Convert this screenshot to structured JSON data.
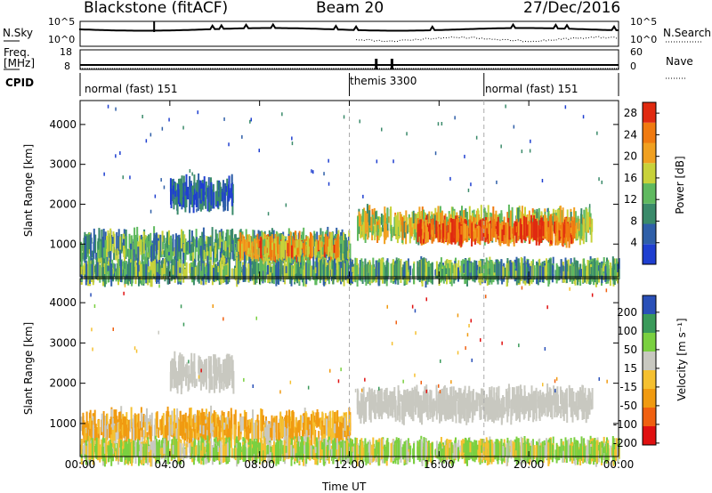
{
  "header": {
    "radar": "Blackstone (fitACF)",
    "beam": "Beam 20",
    "date": "27/Dec/2016"
  },
  "noise_panel": {
    "left_label": "N.Sky",
    "right_label": "N.Search",
    "left_ticks": [
      "10^5",
      "10^0"
    ],
    "right_ticks": [
      "10^5",
      "10^0"
    ]
  },
  "freq_panel": {
    "left_label_1": "Freq.",
    "left_label_2": "[MHz]",
    "right_label": "Nave",
    "left_ticks": [
      "18",
      "8"
    ],
    "right_ticks": [
      "60",
      "0"
    ]
  },
  "cpid_panel": {
    "label": "CPID",
    "modes": [
      {
        "name": "normal (fast) 151",
        "start": 0
      },
      {
        "name": "themis 3300",
        "start": 12
      },
      {
        "name": "normal (fast) 151",
        "start": 18
      }
    ]
  },
  "colors": {
    "power": [
      "#1f3fd0",
      "#2f5fa8",
      "#3a8a6a",
      "#5fb95f",
      "#c8d23a",
      "#f0a020",
      "#f07a10",
      "#e02a10"
    ],
    "velocity": [
      "#e01010",
      "#f06010",
      "#f09a10",
      "#f5c030",
      "#c8c8c0",
      "#7ad040",
      "#3a9a5a",
      "#2a50b8"
    ],
    "ground": "#c8c8c0"
  },
  "chart_data": [
    {
      "type": "heatmap",
      "panel": "power",
      "xlabel": "Time UT",
      "ylabel": "Slant Range [km]",
      "xlim": [
        0,
        24
      ],
      "ylim": [
        180,
        4600
      ],
      "x_ticks": [
        "00:00",
        "04:00",
        "08:00",
        "12:00",
        "16:00",
        "20:00",
        "00:00"
      ],
      "y_ticks": [
        1000,
        2000,
        3000,
        4000
      ],
      "colorbar": {
        "label": "Power [dB]",
        "ticks": [
          4,
          8,
          12,
          16,
          20,
          24,
          28
        ],
        "range": [
          0,
          30
        ]
      },
      "bands": [
        {
          "t0": 0.0,
          "t1": 12.0,
          "r0": 560,
          "r1": 1250,
          "level": 0.35
        },
        {
          "t0": 7.0,
          "t1": 11.5,
          "r0": 700,
          "r1": 1100,
          "level": 0.7
        },
        {
          "t0": 12.3,
          "t1": 22.8,
          "r0": 1150,
          "r1": 1800,
          "level": 0.55
        },
        {
          "t0": 15.0,
          "t1": 22.0,
          "r0": 1150,
          "r1": 1500,
          "level": 0.85
        },
        {
          "t0": 4.0,
          "t1": 6.8,
          "r0": 1900,
          "r1": 2600,
          "level": 0.15
        },
        {
          "t0": 0.0,
          "t1": 24.0,
          "r0": 180,
          "r1": 450,
          "level": 0.4
        }
      ]
    },
    {
      "type": "heatmap",
      "panel": "velocity",
      "xlabel": "Time UT",
      "ylabel": "Slant Range [km]",
      "xlim": [
        0,
        24
      ],
      "ylim": [
        180,
        4600
      ],
      "x_ticks": [
        "00:00",
        "04:00",
        "08:00",
        "12:00",
        "16:00",
        "20:00",
        "00:00"
      ],
      "y_ticks": [
        1000,
        2000,
        3000,
        4000
      ],
      "colorbar": {
        "label": "Velocity [m s⁻¹]",
        "ticks": [
          "-200",
          "-100",
          "-50",
          "-15",
          "15",
          "50",
          "100",
          "200"
        ],
        "range": [
          -250,
          250
        ]
      },
      "bands": [
        {
          "t0": 0.0,
          "t1": 12.0,
          "r0": 560,
          "r1": 1250,
          "vel": -40
        },
        {
          "t0": 12.3,
          "t1": 22.8,
          "r0": 1150,
          "r1": 1800,
          "vel": 0
        },
        {
          "t0": 4.0,
          "t1": 6.8,
          "r0": 1900,
          "r1": 2600,
          "vel": 0
        },
        {
          "t0": 0.0,
          "t1": 24.0,
          "r0": 180,
          "r1": 450,
          "vel": 30
        }
      ]
    }
  ]
}
